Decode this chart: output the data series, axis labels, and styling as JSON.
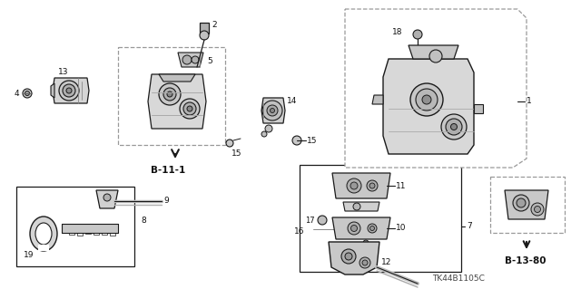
{
  "bg_color": "#ffffff",
  "fig_width": 6.4,
  "fig_height": 3.19,
  "lc": "#1a1a1a",
  "dc": "#999999",
  "gc": "#bbbbbb",
  "footnote": "TK44B1105C",
  "b111_text": "B-11-1",
  "b1380_text": "B-13-80"
}
